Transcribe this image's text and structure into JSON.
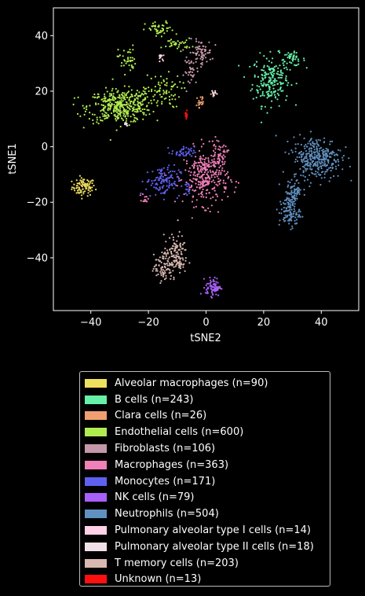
{
  "chart_data": {
    "type": "scatter",
    "title": "",
    "xlabel": "tSNE2",
    "ylabel": "tSNE1",
    "xlim": [
      -53,
      53
    ],
    "ylim": [
      -59,
      50
    ],
    "xticks": [
      -40,
      -20,
      0,
      20,
      40
    ],
    "yticks": [
      -40,
      -20,
      0,
      20,
      40
    ],
    "grid": false,
    "legend_position": "below",
    "series": [
      {
        "name": "Alveolar macrophages (n=90)",
        "color": "#f0e060",
        "clusters": [
          {
            "cx": -42.5,
            "cy": -14.5,
            "sx": 2.0,
            "sy": 1.6,
            "n": 90
          }
        ]
      },
      {
        "name": "B cells (n=243)",
        "color": "#66f0a8",
        "clusters": [
          {
            "cx": 22.5,
            "cy": 24,
            "sx": 3.2,
            "sy": 4.5,
            "n": 200
          },
          {
            "cx": 30,
            "cy": 31.5,
            "sx": 2.2,
            "sy": 1.2,
            "n": 43
          }
        ]
      },
      {
        "name": "Clara cells (n=26)",
        "color": "#f0a070",
        "clusters": [
          {
            "cx": -2,
            "cy": 16,
            "sx": 0.8,
            "sy": 1.8,
            "n": 20
          },
          {
            "cx": 2.5,
            "cy": 19,
            "sx": 0.4,
            "sy": 0.8,
            "n": 6
          }
        ]
      },
      {
        "name": "Endothelial cells (n=600)",
        "color": "#b0ec50",
        "clusters": [
          {
            "cx": -30,
            "cy": 14.5,
            "sx": 5.5,
            "sy": 3.0,
            "n": 380
          },
          {
            "cx": -15,
            "cy": 20,
            "sx": 3.2,
            "sy": 3.0,
            "n": 70
          },
          {
            "cx": -27.5,
            "cy": 31.5,
            "sx": 1.5,
            "sy": 2.5,
            "n": 40
          },
          {
            "cx": -16,
            "cy": 42,
            "sx": 2.5,
            "sy": 1.5,
            "n": 45
          },
          {
            "cx": -10,
            "cy": 37,
            "sx": 2.5,
            "sy": 1.0,
            "n": 35
          },
          {
            "cx": -22,
            "cy": 18,
            "sx": 2.0,
            "sy": 2.0,
            "n": 30
          }
        ]
      },
      {
        "name": "Fibroblasts (n=106)",
        "color": "#c498a8",
        "clusters": [
          {
            "cx": -2,
            "cy": 34,
            "sx": 2.0,
            "sy": 2.2,
            "n": 70
          },
          {
            "cx": -5,
            "cy": 27,
            "sx": 1.3,
            "sy": 2.5,
            "n": 36
          }
        ]
      },
      {
        "name": "Macrophages (n=363)",
        "color": "#f080b8",
        "clusters": [
          {
            "cx": 0,
            "cy": -11,
            "sx": 3.8,
            "sy": 5.0,
            "n": 300
          },
          {
            "cx": 4.5,
            "cy": -3,
            "sx": 1.5,
            "sy": 2.0,
            "n": 50
          },
          {
            "cx": -21,
            "cy": -18.5,
            "sx": 0.6,
            "sy": 0.8,
            "n": 13
          }
        ]
      },
      {
        "name": "Monocytes (n=171)",
        "color": "#6060f0",
        "clusters": [
          {
            "cx": -15,
            "cy": -12.5,
            "sx": 3.0,
            "sy": 2.8,
            "n": 120
          },
          {
            "cx": -8,
            "cy": -2,
            "sx": 2.0,
            "sy": 1.0,
            "n": 40
          },
          {
            "cx": -6.5,
            "cy": -16,
            "sx": 0.8,
            "sy": 1.5,
            "n": 11
          }
        ]
      },
      {
        "name": "NK cells (n=79)",
        "color": "#a860f8",
        "clusters": [
          {
            "cx": 2.5,
            "cy": -50.5,
            "sx": 1.3,
            "sy": 1.6,
            "n": 79
          }
        ]
      },
      {
        "name": "Neutrophils (n=504)",
        "color": "#6090c0",
        "clusters": [
          {
            "cx": 38.5,
            "cy": -4,
            "sx": 4.2,
            "sy": 3.8,
            "n": 330
          },
          {
            "cx": 29,
            "cy": -23.5,
            "sx": 1.8,
            "sy": 2.8,
            "n": 110
          },
          {
            "cx": 30.5,
            "cy": -16.5,
            "sx": 1.3,
            "sy": 2.0,
            "n": 64
          }
        ]
      },
      {
        "name": "Pulmonary alveolar type I cells (n=14)",
        "color": "#ffd0e8",
        "clusters": [
          {
            "cx": -16,
            "cy": 32.5,
            "sx": 0.5,
            "sy": 0.6,
            "n": 14
          }
        ]
      },
      {
        "name": "Pulmonary alveolar type II cells (n=18)",
        "color": "#f0e0e8",
        "clusters": [
          {
            "cx": 2.5,
            "cy": 19.5,
            "sx": 0.4,
            "sy": 0.5,
            "n": 9
          },
          {
            "cx": -28,
            "cy": 8,
            "sx": 0.5,
            "sy": 0.5,
            "n": 9
          }
        ]
      },
      {
        "name": "T memory cells (n=203)",
        "color": "#d8b8b0",
        "clusters": [
          {
            "cx": -10.5,
            "cy": -39,
            "sx": 2.0,
            "sy": 3.5,
            "n": 130
          },
          {
            "cx": -15,
            "cy": -43.5,
            "sx": 1.6,
            "sy": 2.5,
            "n": 73
          }
        ]
      },
      {
        "name": "Unknown (n=13)",
        "color": "#ff1010",
        "clusters": [
          {
            "cx": -6.8,
            "cy": 11.5,
            "sx": 0.2,
            "sy": 0.7,
            "n": 13
          }
        ]
      }
    ]
  }
}
